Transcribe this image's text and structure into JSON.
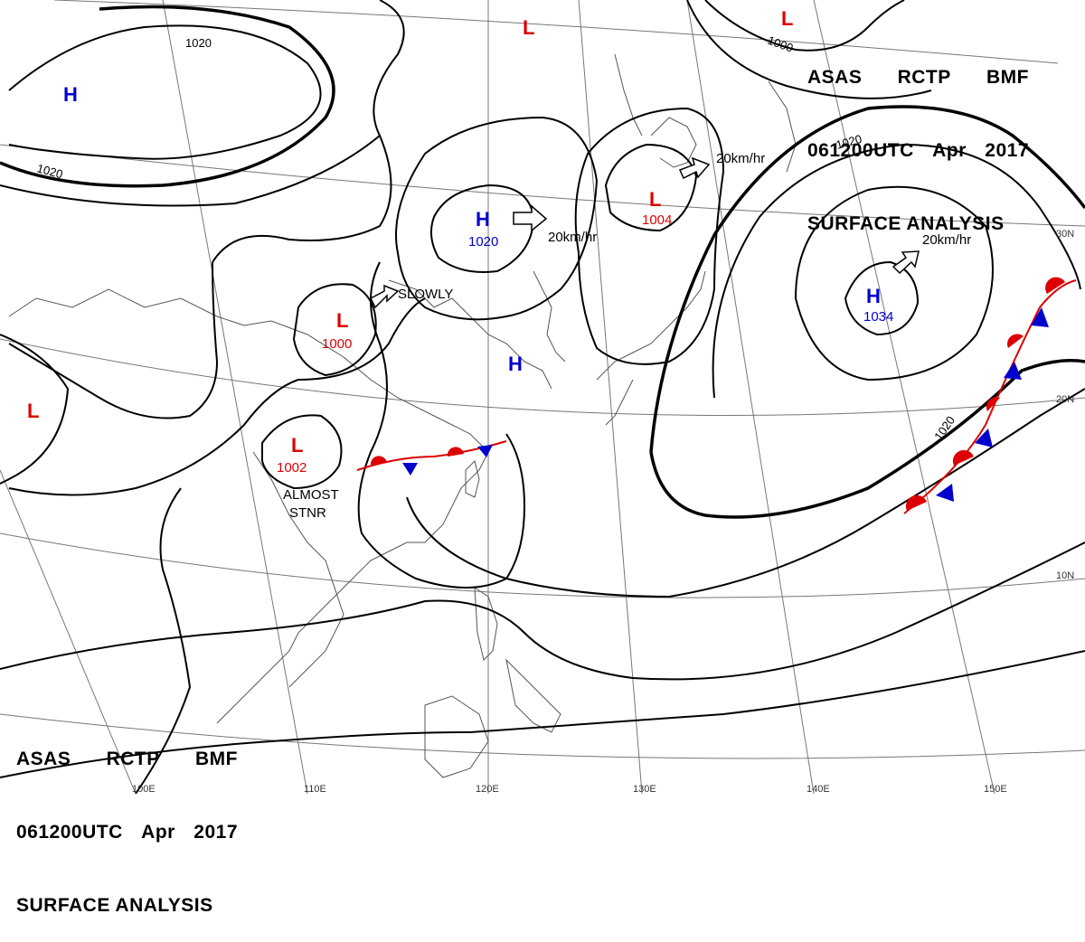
{
  "header_top": {
    "line1": [
      "ASAS",
      "RCTP",
      "BMF"
    ],
    "line2": [
      "061200UTC",
      "Apr",
      "2017"
    ],
    "line3": "SURFACE ANALYSIS"
  },
  "header_bottom": {
    "line1": [
      "ASAS",
      "RCTP",
      "BMF"
    ],
    "line2": [
      "061200UTC",
      "Apr",
      "2017"
    ],
    "line3": "SURFACE ANALYSIS"
  },
  "colors": {
    "high": "#0000cc",
    "low": "#dd0000",
    "isobar": "#000000",
    "coast": "#555555",
    "grid": "#777777",
    "warm_front": "#dd0000",
    "cold_front": "#0000cc"
  },
  "pressure_centers": [
    {
      "type": "H",
      "label": "H",
      "value": ""
    },
    {
      "type": "H",
      "label": "H",
      "value": "1020"
    },
    {
      "type": "H",
      "label": "H",
      "value": ""
    },
    {
      "type": "H",
      "label": "H",
      "value": "1034"
    },
    {
      "type": "L",
      "label": "L",
      "value": ""
    },
    {
      "type": "L",
      "label": "L",
      "value": "1004"
    },
    {
      "type": "L",
      "label": "L",
      "value": "1000"
    },
    {
      "type": "L",
      "label": "L",
      "value": "1002"
    },
    {
      "type": "L",
      "label": "L",
      "value": ""
    },
    {
      "type": "L",
      "label": "L",
      "value": ""
    }
  ],
  "isobar_labels": [
    "1020",
    "1020",
    "1000",
    "1020",
    "1020"
  ],
  "motions": [
    "SLOWLY",
    "20km/hr",
    "20km/hr",
    "20km/hr"
  ],
  "stationary_note": [
    "ALMOST",
    "STNR"
  ],
  "lat_labels": [
    "30N",
    "20N",
    "10N"
  ],
  "lon_labels": [
    "100E",
    "110E",
    "120E",
    "130E",
    "140E",
    "150E"
  ],
  "fronts": [
    {
      "type": "stationary",
      "name": "south-china-stationary-front"
    },
    {
      "type": "stationary",
      "name": "pacific-stationary-front"
    }
  ]
}
